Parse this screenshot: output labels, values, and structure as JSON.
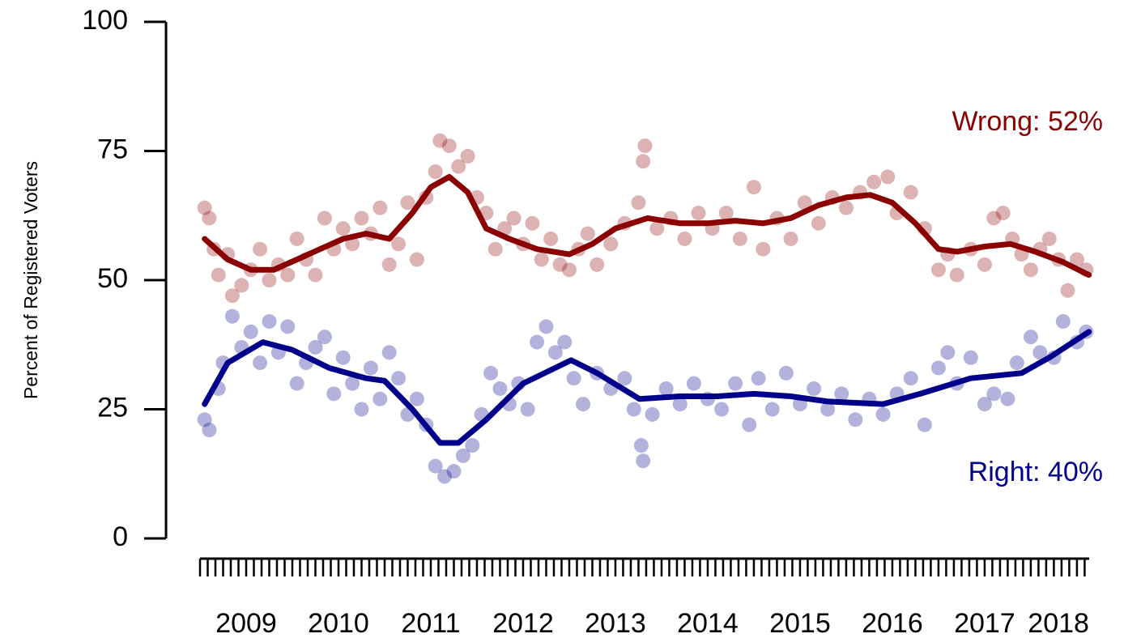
{
  "chart_data": {
    "type": "scatter",
    "ylabel": "Percent of Registered Voters",
    "ylim": [
      0,
      100
    ],
    "yticks": [
      0,
      25,
      50,
      75,
      100
    ],
    "xlim": [
      2009,
      2018.65
    ],
    "xticks": [
      {
        "value": 2009.5,
        "label": "2009"
      },
      {
        "value": 2010.5,
        "label": "2010"
      },
      {
        "value": 2011.5,
        "label": "2011"
      },
      {
        "value": 2012.5,
        "label": "2012"
      },
      {
        "value": 2013.5,
        "label": "2013"
      },
      {
        "value": 2014.5,
        "label": "2014"
      },
      {
        "value": 2015.5,
        "label": "2015"
      },
      {
        "value": 2016.5,
        "label": "2016"
      },
      {
        "value": 2017.5,
        "label": "2017"
      },
      {
        "value": 2018.3,
        "label": "2018"
      }
    ],
    "annotations": [
      {
        "text": "Wrong: 52%",
        "color": "#8b0000",
        "y": 52
      },
      {
        "text": "Right: 40%",
        "color": "#00008b",
        "y": 40
      }
    ],
    "series": [
      {
        "color": "#8b0000",
        "x": [
          2009.05,
          2009.1,
          2009.15,
          2009.2,
          2009.3,
          2009.35,
          2009.45,
          2009.55,
          2009.65,
          2009.75,
          2009.85,
          2009.95,
          2010.05,
          2010.15,
          2010.25,
          2010.35,
          2010.45,
          2010.55,
          2010.65,
          2010.75,
          2010.85,
          2010.95,
          2011.05,
          2011.15,
          2011.25,
          2011.35,
          2011.45,
          2011.55,
          2011.6,
          2011.7,
          2011.8,
          2011.9,
          2012.0,
          2012.1,
          2012.2,
          2012.3,
          2012.4,
          2012.5,
          2012.6,
          2012.7,
          2012.8,
          2012.9,
          2013.0,
          2013.1,
          2013.2,
          2013.3,
          2013.45,
          2013.6,
          2013.75,
          2013.8,
          2013.82,
          2013.95,
          2014.1,
          2014.25,
          2014.4,
          2014.55,
          2014.7,
          2014.85,
          2015.0,
          2015.1,
          2015.25,
          2015.4,
          2015.55,
          2015.7,
          2015.85,
          2016.0,
          2016.15,
          2016.3,
          2016.45,
          2016.55,
          2016.7,
          2016.85,
          2017.0,
          2017.1,
          2017.2,
          2017.35,
          2017.5,
          2017.6,
          2017.7,
          2017.8,
          2017.9,
          2018.0,
          2018.1,
          2018.2,
          2018.3,
          2018.4,
          2018.5,
          2018.6
        ],
        "values": [
          64,
          62,
          56,
          51,
          55,
          47,
          49,
          52,
          56,
          50,
          53,
          51,
          58,
          54,
          51,
          62,
          56,
          60,
          57,
          62,
          59,
          64,
          53,
          57,
          65,
          54,
          66,
          71,
          77,
          76,
          72,
          74,
          66,
          63,
          56,
          60,
          62,
          57,
          61,
          54,
          58,
          53,
          52,
          56,
          59,
          53,
          57,
          61,
          65,
          73,
          76,
          60,
          62,
          58,
          63,
          60,
          63,
          58,
          68,
          56,
          62,
          58,
          65,
          61,
          66,
          64,
          67,
          69,
          70,
          63,
          67,
          60,
          52,
          55,
          51,
          56,
          53,
          62,
          63,
          58,
          55,
          52,
          56,
          58,
          54,
          48,
          54,
          52
        ],
        "trend_x": [
          2009.05,
          2009.3,
          2009.55,
          2009.8,
          2010.05,
          2010.3,
          2010.55,
          2010.8,
          2011.05,
          2011.3,
          2011.5,
          2011.7,
          2011.9,
          2012.1,
          2012.35,
          2012.65,
          2013.0,
          2013.25,
          2013.5,
          2013.85,
          2014.2,
          2014.5,
          2014.8,
          2015.1,
          2015.4,
          2015.7,
          2016.0,
          2016.26,
          2016.5,
          2016.75,
          2017.0,
          2017.2,
          2017.5,
          2017.78,
          2018.05,
          2018.35,
          2018.63
        ],
        "trend": [
          58,
          54,
          52,
          52,
          54,
          56,
          58,
          59,
          58,
          63,
          68,
          70,
          67,
          60,
          58,
          56,
          55,
          57,
          60,
          62,
          61,
          61,
          61.5,
          61,
          62,
          64.5,
          66,
          66.5,
          65,
          61,
          56,
          55.5,
          56.5,
          57,
          55.5,
          53.5,
          51
        ]
      },
      {
        "color": "#00008b",
        "x": [
          2009.05,
          2009.1,
          2009.2,
          2009.25,
          2009.35,
          2009.45,
          2009.55,
          2009.65,
          2009.75,
          2009.85,
          2009.95,
          2010.05,
          2010.15,
          2010.25,
          2010.35,
          2010.45,
          2010.55,
          2010.65,
          2010.75,
          2010.85,
          2010.95,
          2011.05,
          2011.15,
          2011.25,
          2011.35,
          2011.45,
          2011.55,
          2011.65,
          2011.75,
          2011.85,
          2011.95,
          2012.05,
          2012.15,
          2012.25,
          2012.35,
          2012.45,
          2012.55,
          2012.65,
          2012.75,
          2012.85,
          2012.95,
          2013.05,
          2013.15,
          2013.3,
          2013.45,
          2013.6,
          2013.7,
          2013.78,
          2013.8,
          2013.9,
          2014.05,
          2014.2,
          2014.35,
          2014.5,
          2014.65,
          2014.8,
          2014.95,
          2015.05,
          2015.2,
          2015.35,
          2015.5,
          2015.65,
          2015.8,
          2015.95,
          2016.1,
          2016.25,
          2016.4,
          2016.55,
          2016.7,
          2016.85,
          2017.0,
          2017.1,
          2017.2,
          2017.35,
          2017.5,
          2017.6,
          2017.75,
          2017.85,
          2018.0,
          2018.1,
          2018.25,
          2018.35,
          2018.5,
          2018.6
        ],
        "values": [
          23,
          21,
          29,
          34,
          43,
          37,
          40,
          34,
          42,
          36,
          41,
          30,
          34,
          37,
          39,
          28,
          35,
          30,
          25,
          33,
          27,
          36,
          31,
          24,
          27,
          22,
          14,
          12,
          13,
          16,
          18,
          24,
          32,
          29,
          26,
          30,
          25,
          38,
          41,
          36,
          38,
          31,
          26,
          32,
          29,
          31,
          25,
          18,
          15,
          24,
          29,
          26,
          30,
          27,
          25,
          30,
          22,
          31,
          25,
          32,
          26,
          29,
          25,
          28,
          23,
          27,
          24,
          28,
          31,
          22,
          33,
          36,
          30,
          35,
          26,
          28,
          27,
          34,
          39,
          36,
          35,
          42,
          38,
          40
        ],
        "trend_x": [
          2009.05,
          2009.3,
          2009.68,
          2010.0,
          2010.4,
          2010.8,
          2011.0,
          2011.3,
          2011.6,
          2011.8,
          2012.1,
          2012.5,
          2013.02,
          2013.3,
          2013.76,
          2014.2,
          2014.6,
          2015.0,
          2015.4,
          2015.8,
          2016.4,
          2016.8,
          2017.35,
          2017.9,
          2018.2,
          2018.63
        ],
        "trend": [
          26,
          34,
          38,
          36.5,
          33,
          31,
          30.5,
          25,
          18.5,
          18.5,
          23,
          30,
          34.5,
          32,
          27,
          27.5,
          27.5,
          28,
          27.5,
          26.5,
          26,
          28,
          31,
          32,
          35,
          40
        ]
      }
    ]
  }
}
